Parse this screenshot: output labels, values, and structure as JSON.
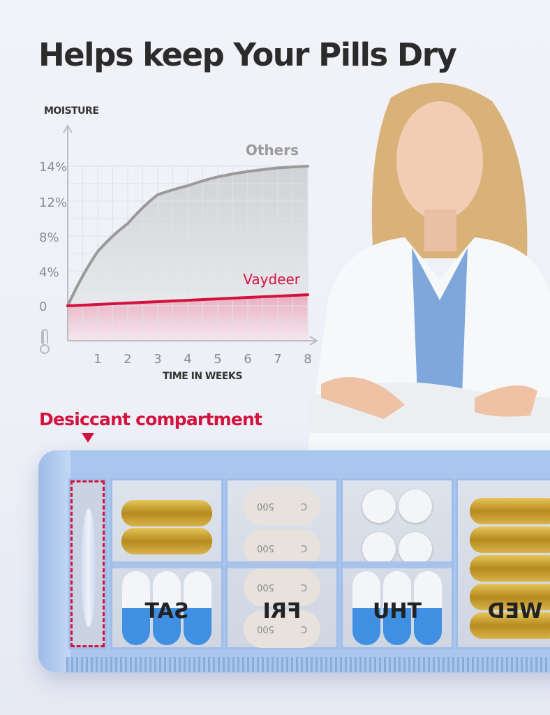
{
  "headline": "Helps keep Your Pills Dry",
  "chart_data": {
    "type": "line",
    "ylabel": "MOISTURE",
    "xlabel": "TIME IN WEEKS",
    "x_ticks": [
      "1",
      "2",
      "3",
      "4",
      "5",
      "6",
      "7",
      "8"
    ],
    "y_ticks": [
      "0",
      "4%",
      "8%",
      "12%",
      "14%"
    ],
    "y_tick_values": [
      0,
      4,
      8,
      12,
      14
    ],
    "xlim": [
      0,
      8
    ],
    "grid": true,
    "series": [
      {
        "name": "Others",
        "color": "#9a9a9a",
        "x": [
          0,
          1,
          2,
          3,
          4,
          5,
          6,
          7,
          8
        ],
        "y": [
          0,
          6.3,
          9.5,
          12.4,
          12.9,
          13.4,
          13.7,
          13.9,
          14
        ]
      },
      {
        "name": "Vaydeer",
        "color": "#d4123e",
        "x": [
          0,
          8
        ],
        "y": [
          0,
          1.3
        ]
      }
    ],
    "icon": "thermometer-droplet-icon"
  },
  "callout": {
    "label": "Desiccant compartment",
    "color": "#d4123e"
  },
  "organizer": {
    "compartments": [
      {
        "day": "SAT"
      },
      {
        "day": "FRI",
        "pill_text": [
          "C",
          "500"
        ]
      },
      {
        "day": "THU"
      },
      {
        "day": "WED"
      }
    ]
  }
}
